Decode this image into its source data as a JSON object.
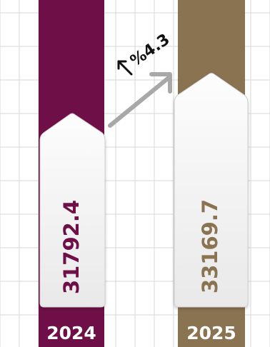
{
  "chart_data": {
    "type": "bar",
    "categories": [
      "2024",
      "2025"
    ],
    "values": [
      31792.4,
      33169.7
    ],
    "value_labels": [
      "31792.4",
      "33169.7"
    ],
    "change_label": "%4.3",
    "grid": true,
    "colors": {
      "bar_2024": "#6f0f47",
      "bar_2025": "#8a7350",
      "arrow": "#a8a8a8",
      "grid": "#d7d7d7",
      "card": "#f6f6f6",
      "card_border": "#cfcfcf",
      "text_dark": "#111111",
      "label_text": "#ffffff"
    }
  }
}
